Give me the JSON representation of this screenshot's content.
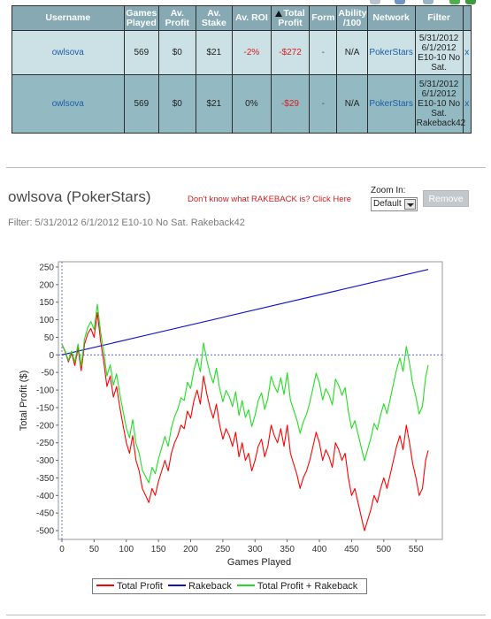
{
  "table": {
    "headers": [
      "Username",
      "Games Played",
      "Av. Profit",
      "Av. Stake",
      "Av. ROI",
      "Total Profit",
      "Form",
      "Ability /100",
      "Network",
      "Filter",
      ""
    ],
    "rows": [
      {
        "username": "owlsova",
        "games_played": "569",
        "av_profit": "$0",
        "av_stake": "$21",
        "av_roi": "-2%",
        "total_profit": "-$272",
        "form": "-",
        "ability": "N/A",
        "network": "PokerStars",
        "filter_lines": [
          "5/31/2012",
          "6/1/2012",
          "E10-10 No",
          "Sat."
        ],
        "remove": "x"
      },
      {
        "username": "owlsova",
        "games_played": "569",
        "av_profit": "$0",
        "av_stake": "$21",
        "av_roi": "0%",
        "total_profit": "-$29",
        "form": "-",
        "ability": "N/A",
        "network": "PokerStars",
        "filter_lines": [
          "5/31/2012",
          "6/1/2012",
          "E10-10 No",
          "Sat.",
          "Rakeback42"
        ],
        "remove": "x"
      }
    ]
  },
  "player": {
    "title": "owlsova (PokerStars)",
    "rakeback_link": "Don't know what RAKEBACK is? Click Here",
    "zoom_label": "Zoom In:",
    "zoom_value": "Default",
    "remove_label": "Remove",
    "filter": "Filter: 5/31/2012 6/1/2012 E10-10 No Sat. Rakeback42"
  },
  "colors": {
    "header_bg": "#86a9b3",
    "row1_bg": "#cce1e5",
    "row2_bg": "#93b9c2",
    "total_profit": "#ff0000",
    "rakeback": "#1010cc",
    "total_plus_rakeback": "#22dd22"
  },
  "chart_data": {
    "type": "line",
    "xlabel": "Games Played",
    "ylabel": "Total Profit ($)",
    "xlim": [
      0,
      569
    ],
    "ylim": [
      -525,
      265
    ],
    "xticks": [
      0,
      50,
      100,
      150,
      200,
      250,
      300,
      350,
      400,
      450,
      500,
      550
    ],
    "yticks": [
      250,
      200,
      150,
      100,
      50,
      0,
      -50,
      -100,
      -150,
      -200,
      -250,
      -300,
      -350,
      -400,
      -450,
      -500
    ],
    "grid": false,
    "legend_position": "bottom",
    "series": [
      {
        "name": "Total Profit",
        "color": "#ff0000",
        "x": [
          0,
          5,
          10,
          15,
          20,
          25,
          30,
          35,
          40,
          45,
          50,
          55,
          60,
          65,
          70,
          75,
          80,
          85,
          90,
          95,
          100,
          105,
          110,
          115,
          120,
          125,
          130,
          135,
          140,
          145,
          150,
          155,
          160,
          165,
          170,
          175,
          180,
          185,
          190,
          195,
          200,
          205,
          210,
          215,
          220,
          225,
          230,
          235,
          240,
          245,
          250,
          255,
          260,
          265,
          270,
          275,
          280,
          285,
          290,
          295,
          300,
          305,
          310,
          315,
          320,
          325,
          330,
          335,
          340,
          345,
          350,
          355,
          360,
          365,
          370,
          375,
          380,
          385,
          390,
          395,
          400,
          405,
          410,
          415,
          420,
          425,
          430,
          435,
          440,
          445,
          450,
          455,
          460,
          465,
          470,
          475,
          480,
          485,
          490,
          495,
          500,
          505,
          510,
          515,
          520,
          525,
          530,
          535,
          540,
          545,
          550,
          555,
          560,
          565,
          569
        ],
        "y": [
          30,
          10,
          -20,
          5,
          -30,
          20,
          -45,
          30,
          60,
          75,
          50,
          120,
          40,
          -20,
          -90,
          -60,
          -120,
          -90,
          -150,
          -200,
          -250,
          -280,
          -230,
          -300,
          -330,
          -380,
          -400,
          -420,
          -380,
          -400,
          -360,
          -330,
          -300,
          -330,
          -280,
          -250,
          -230,
          -200,
          -210,
          -160,
          -180,
          -130,
          -100,
          -140,
          -60,
          -110,
          -150,
          -180,
          -140,
          -200,
          -240,
          -210,
          -230,
          -260,
          -220,
          -290,
          -250,
          -300,
          -280,
          -330,
          -300,
          -260,
          -240,
          -290,
          -260,
          -200,
          -230,
          -250,
          -210,
          -260,
          -200,
          -280,
          -310,
          -340,
          -380,
          -350,
          -330,
          -300,
          -260,
          -220,
          -250,
          -300,
          -270,
          -290,
          -320,
          -250,
          -270,
          -300,
          -280,
          -350,
          -400,
          -380,
          -420,
          -460,
          -500,
          -470,
          -440,
          -400,
          -420,
          -380,
          -350,
          -380,
          -340,
          -300,
          -260,
          -230,
          -270,
          -200,
          -250,
          -310,
          -350,
          -400,
          -380,
          -300,
          -272
        ]
      },
      {
        "name": "Rakeback",
        "color": "#1010cc",
        "x": [
          0,
          569
        ],
        "y": [
          0,
          243
        ]
      },
      {
        "name": "Total Profit + Rakeback",
        "color": "#22dd22",
        "x": [
          0,
          5,
          10,
          15,
          20,
          25,
          30,
          35,
          40,
          45,
          50,
          55,
          60,
          65,
          70,
          75,
          80,
          85,
          90,
          95,
          100,
          105,
          110,
          115,
          120,
          125,
          130,
          135,
          140,
          145,
          150,
          155,
          160,
          165,
          170,
          175,
          180,
          185,
          190,
          195,
          200,
          205,
          210,
          215,
          220,
          225,
          230,
          235,
          240,
          245,
          250,
          255,
          260,
          265,
          270,
          275,
          280,
          285,
          290,
          295,
          300,
          305,
          310,
          315,
          320,
          325,
          330,
          335,
          340,
          345,
          350,
          355,
          360,
          365,
          370,
          375,
          380,
          385,
          390,
          395,
          400,
          405,
          410,
          415,
          420,
          425,
          430,
          435,
          440,
          445,
          450,
          455,
          460,
          465,
          470,
          475,
          480,
          485,
          490,
          495,
          500,
          505,
          510,
          515,
          520,
          525,
          530,
          535,
          540,
          545,
          550,
          555,
          560,
          565,
          569
        ],
        "y": [
          30,
          12,
          -16,
          11,
          -21,
          31,
          -32,
          45,
          77,
          95,
          72,
          144,
          66,
          8,
          -60,
          -28,
          -86,
          -54,
          -112,
          -160,
          -208,
          -236,
          -184,
          -252,
          -280,
          -328,
          -346,
          -364,
          -320,
          -338,
          -296,
          -264,
          -232,
          -260,
          -208,
          -176,
          -154,
          -122,
          -130,
          -78,
          -95,
          -43,
          -10,
          -48,
          34,
          -14,
          -52,
          -80,
          -38,
          -96,
          -133,
          -101,
          -119,
          -147,
          -105,
          -172,
          -130,
          -178,
          -156,
          -204,
          -172,
          -130,
          -108,
          -155,
          -123,
          -61,
          -89,
          -107,
          -65,
          -113,
          -51,
          -129,
          -157,
          -185,
          -223,
          -191,
          -169,
          -136,
          -94,
          -52,
          -80,
          -128,
          -96,
          -114,
          -142,
          -69,
          -87,
          -115,
          -93,
          -161,
          -209,
          -187,
          -225,
          -263,
          -301,
          -269,
          -237,
          -195,
          -213,
          -171,
          -139,
          -167,
          -125,
          -83,
          -41,
          -9,
          -47,
          24,
          -24,
          -82,
          -120,
          -168,
          -146,
          -64,
          -29
        ]
      }
    ]
  }
}
